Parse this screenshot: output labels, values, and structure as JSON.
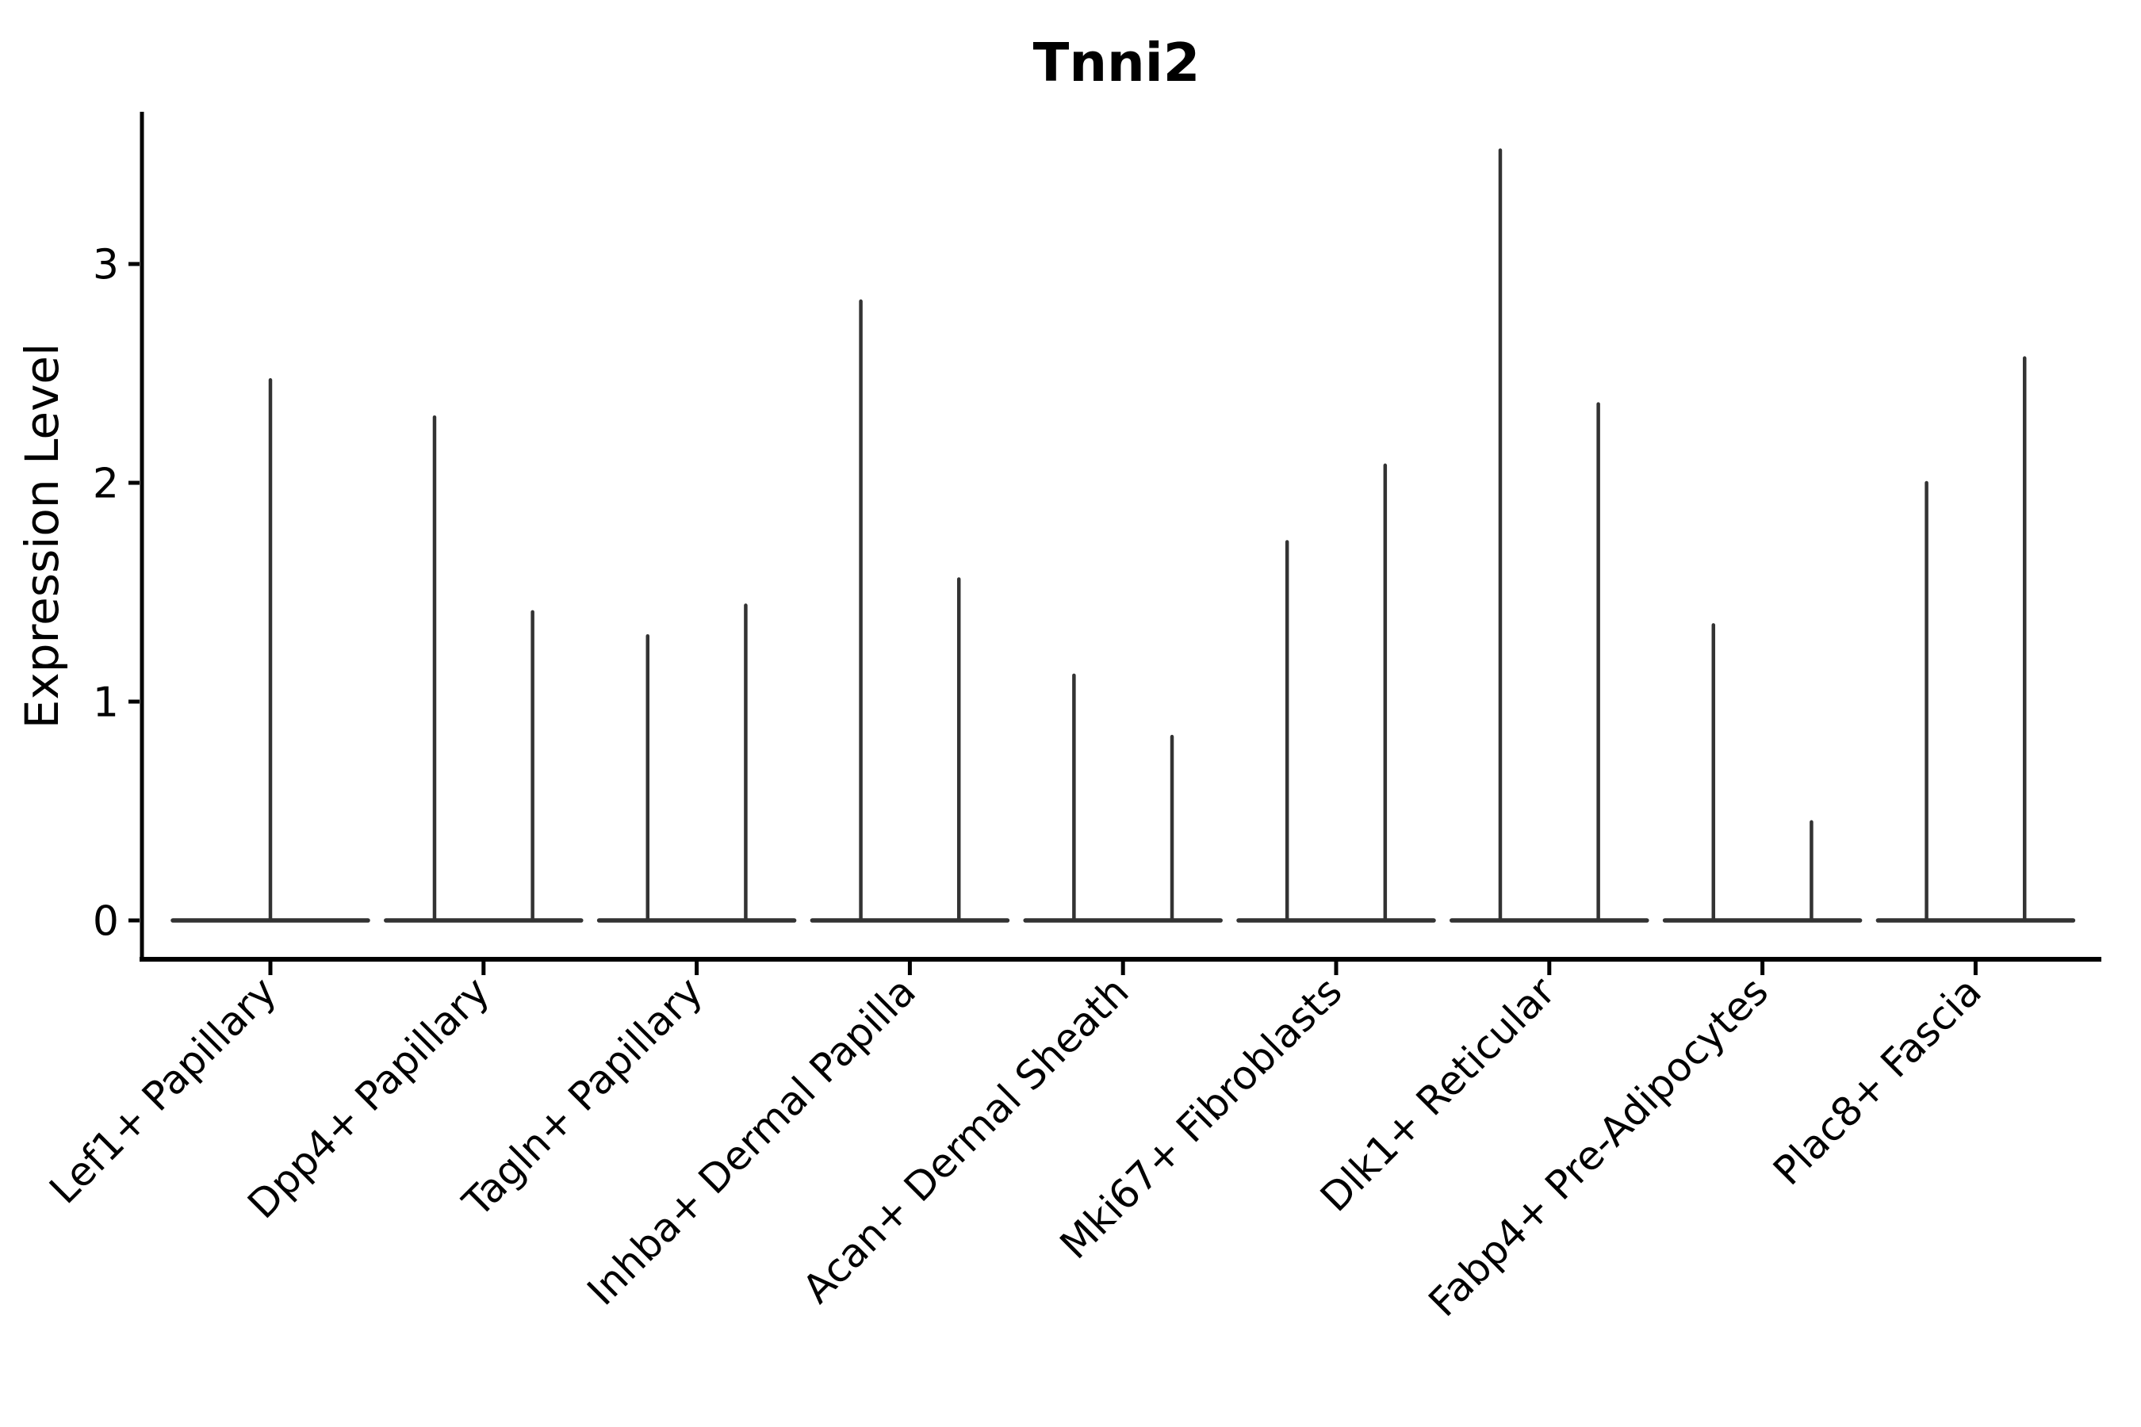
{
  "figure": {
    "background": "#ffffff"
  },
  "chart_data": {
    "type": "violin",
    "title": "Tnni2",
    "ylabel": "Expression Level",
    "xlabel": "",
    "ylim": [
      -0.18,
      3.7
    ],
    "yticks": [
      0,
      1,
      2,
      3
    ],
    "grid": false,
    "legend": "none",
    "x_tick_rotation": 45,
    "violin_color": "#333333",
    "axis_color": "#000000",
    "categories": [
      "Lef1+ Papillary",
      "Dpp4+ Papillary",
      "Tagln+ Papillary",
      "Inhba+ Dermal Papilla",
      "Acan+ Dermal Sheath",
      "Mki67+ Fibroblasts",
      "Dlk1+ Reticular",
      "Fabp4+ Pre-Adipocytes",
      "Plac8+ Fascia"
    ],
    "violins": [
      {
        "category": "Lef1+ Papillary",
        "spikes": [
          {
            "offset": 0,
            "max": 2.47
          }
        ]
      },
      {
        "category": "Dpp4+ Papillary",
        "spikes": [
          {
            "offset": -0.23,
            "max": 2.3
          },
          {
            "offset": 0.23,
            "max": 1.41
          }
        ]
      },
      {
        "category": "Tagln+ Papillary",
        "spikes": [
          {
            "offset": -0.23,
            "max": 1.3
          },
          {
            "offset": 0.23,
            "max": 1.44
          }
        ]
      },
      {
        "category": "Inhba+ Dermal Papilla",
        "spikes": [
          {
            "offset": -0.23,
            "max": 2.83
          },
          {
            "offset": 0.23,
            "max": 1.56
          }
        ]
      },
      {
        "category": "Acan+ Dermal Sheath",
        "spikes": [
          {
            "offset": -0.23,
            "max": 1.12
          },
          {
            "offset": 0.23,
            "max": 0.84
          }
        ]
      },
      {
        "category": "Mki67+ Fibroblasts",
        "spikes": [
          {
            "offset": -0.23,
            "max": 1.73
          },
          {
            "offset": 0.23,
            "max": 2.08
          }
        ]
      },
      {
        "category": "Dlk1+ Reticular",
        "spikes": [
          {
            "offset": -0.23,
            "max": 3.52
          },
          {
            "offset": 0.23,
            "max": 2.36
          }
        ]
      },
      {
        "category": "Fabp4+ Pre-Adipocytes",
        "spikes": [
          {
            "offset": -0.23,
            "max": 1.35
          },
          {
            "offset": 0.23,
            "max": 0.45
          }
        ]
      },
      {
        "category": "Plac8+ Fascia",
        "spikes": [
          {
            "offset": -0.23,
            "max": 2.0
          },
          {
            "offset": 0.23,
            "max": 2.57
          }
        ]
      }
    ],
    "baseline_value": 0
  }
}
